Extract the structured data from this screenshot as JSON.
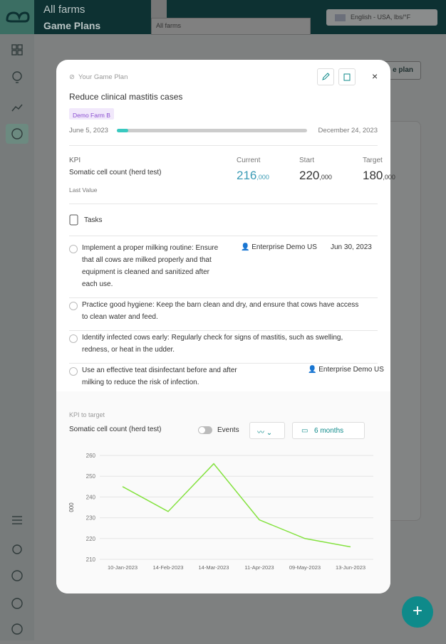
{
  "header": {
    "breadcrumb": "All farms",
    "title": "Game Plans",
    "farm_select": "All farms",
    "language": "English - USA, lbs/°F"
  },
  "background": {
    "button": "e plan"
  },
  "modal": {
    "eyebrow": "Your Game Plan",
    "title": "Reduce clinical mastitis cases",
    "farm_tag": "Demo Farm B",
    "progress": {
      "start": "June 5, 2023",
      "end": "December 24, 2023",
      "percent": 6
    },
    "kpi": {
      "label": "KPI",
      "name": "Somatic cell count (herd test)",
      "note": "Last Value",
      "current": {
        "label": "Current",
        "value": "216",
        "suffix": ",000"
      },
      "start": {
        "label": "Start",
        "value": "220",
        "suffix": ",000"
      },
      "target": {
        "label": "Target",
        "value": "180",
        "suffix": ",000"
      }
    },
    "tasks": {
      "title": "Tasks",
      "items": [
        {
          "text": "Implement a proper milking routine: Ensure that all cows are milked properly and that equipment is cleaned and sanitized after each use.",
          "assignee": "Enterprise Demo US",
          "due": "Jun 30, 2023"
        },
        {
          "text": "Practice good hygiene: Keep the barn clean and dry, and ensure that cows have access to clean water and feed."
        },
        {
          "text": "Identify infected cows early: Regularly check for signs of mastitis, such as swelling, redness, or heat in the udder."
        },
        {
          "text": "Use an effective teat disinfectant before and after milking to reduce the risk of infection.",
          "assignee": "Enterprise Demo US"
        }
      ]
    },
    "chart_section": {
      "title": "KPI to target",
      "metric": "Somatic cell count (herd test)",
      "events": "Events",
      "range": "6 months"
    }
  },
  "chart_data": {
    "type": "line",
    "y_label": "000",
    "categories": [
      "10-Jan-2023",
      "14-Feb-2023",
      "14-Mar-2023",
      "11-Apr-2023",
      "09-May-2023",
      "13-Jun-2023"
    ],
    "series": [
      {
        "name": "Somatic cell count (herd test)",
        "color": "#84e23f",
        "values": [
          245,
          233,
          256,
          229,
          220,
          216
        ]
      }
    ],
    "ylim": [
      210,
      260
    ],
    "yticks": [
      210,
      220,
      230,
      240,
      250,
      260
    ],
    "grid": true
  }
}
